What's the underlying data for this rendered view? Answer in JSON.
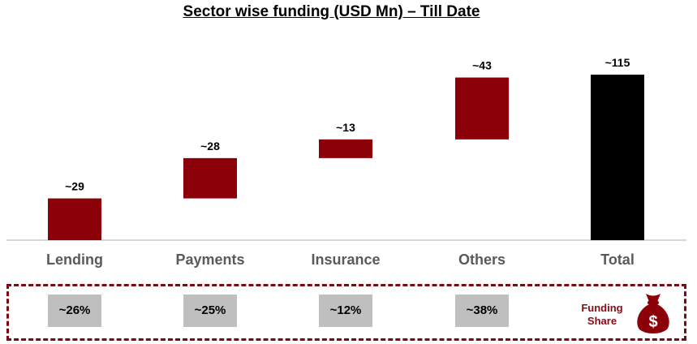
{
  "chart_data": {
    "type": "bar",
    "subtype": "waterfall",
    "title": "Sector wise funding (USD Mn) – Till Date",
    "categories": [
      "Lending",
      "Payments",
      "Insurance",
      "Others",
      "Total"
    ],
    "values": [
      29,
      28,
      13,
      43,
      115
    ],
    "data_labels": [
      "~29",
      "~28",
      "~13",
      "~43",
      "~115"
    ],
    "xlabel": "",
    "ylabel": "",
    "ylim": [
      0,
      115
    ],
    "grid": false,
    "legend": "none",
    "colors": {
      "increment": "#8b0009",
      "total": "#000000",
      "axis": "#c8c8c8",
      "category_text": "#5a5a5a"
    }
  },
  "funding_share": {
    "label_line1": "Funding",
    "label_line2": "Share",
    "values": [
      "~26%",
      "~25%",
      "~12%",
      "~38%"
    ],
    "icon": "money-bag-dollar-icon",
    "icon_glyph": "$"
  }
}
